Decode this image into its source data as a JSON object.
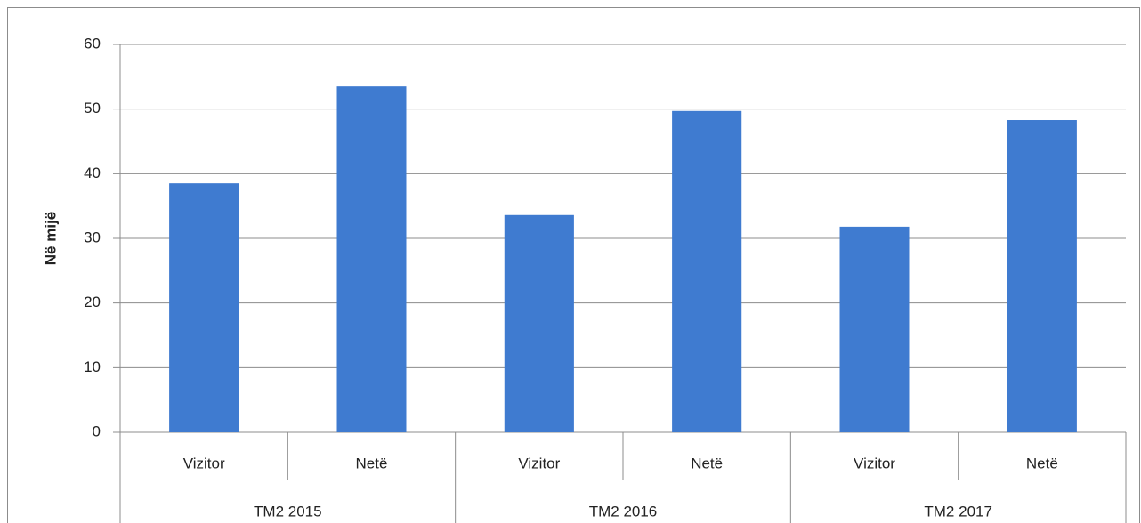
{
  "chart_data": {
    "type": "bar",
    "y_label": "Në mijë",
    "categories": [
      "Vizitor",
      "Netë",
      "Vizitor",
      "Netë",
      "Vizitor",
      "Netë"
    ],
    "category_groups": [
      "TM2 2015",
      "TM2 2016",
      "TM2 2017"
    ],
    "values": [
      38.5,
      53.5,
      33.6,
      49.7,
      31.8,
      48.3
    ],
    "color": "#3f7bd0",
    "ylim": [
      0,
      60
    ],
    "yticks": [
      0,
      10,
      20,
      30,
      40,
      50,
      60
    ],
    "grid": true
  }
}
